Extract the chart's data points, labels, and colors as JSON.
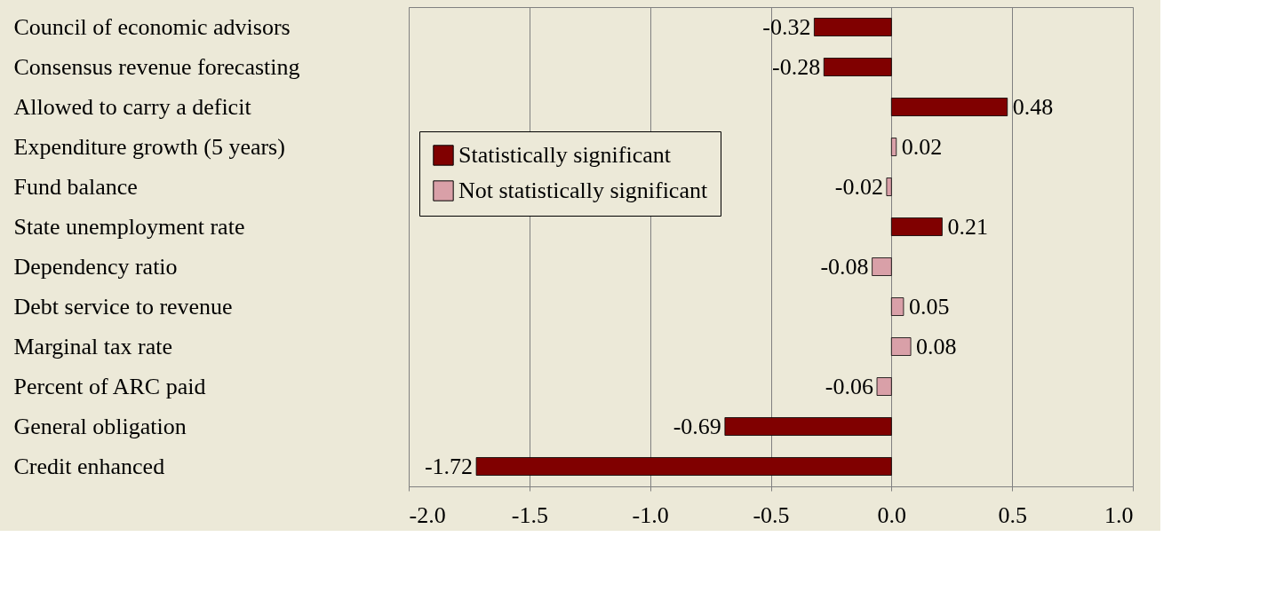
{
  "chart_data": {
    "type": "bar",
    "orientation": "horizontal",
    "categories": [
      "Council of economic advisors",
      "Consensus revenue forecasting",
      "Allowed to carry a deficit",
      "Expenditure growth (5 years)",
      "Fund balance",
      "State unemployment rate",
      "Dependency ratio",
      "Debt service to revenue",
      "Marginal tax rate",
      "Percent of ARC paid",
      "General obligation",
      "Credit enhanced"
    ],
    "series": [
      {
        "name": "Statistically significant",
        "color": "#800000",
        "values": [
          -0.32,
          -0.28,
          0.48,
          null,
          null,
          0.21,
          null,
          null,
          null,
          null,
          -0.69,
          -1.72
        ]
      },
      {
        "name": "Not statistically significant",
        "color": "#d9a0a8",
        "values": [
          null,
          null,
          null,
          0.02,
          -0.02,
          null,
          -0.08,
          0.05,
          0.08,
          -0.06,
          null,
          null
        ]
      }
    ],
    "xlim": [
      -2.0,
      1.0
    ],
    "xticks": [
      {
        "value": -2,
        "label": "-2.0"
      },
      {
        "value": -1.5,
        "label": "-1.5"
      },
      {
        "value": -1,
        "label": "-1.0"
      },
      {
        "value": -0.5,
        "label": "-0.5"
      },
      {
        "value": 0,
        "label": "0.0"
      },
      {
        "value": 0.5,
        "label": "0.5"
      },
      {
        "value": 1,
        "label": "1.0"
      }
    ],
    "grid": "x",
    "legend": "top left",
    "data_labels": true
  }
}
